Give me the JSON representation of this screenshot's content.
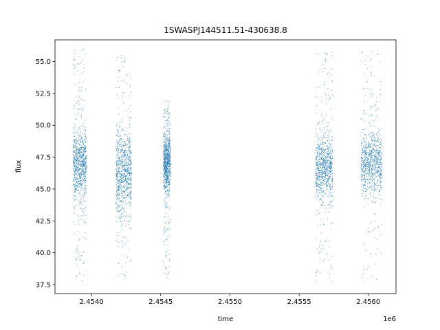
{
  "chart_data": {
    "type": "scatter",
    "title": "1SWASPJ144511.51-430638.8",
    "xlabel": "time",
    "ylabel": "flux",
    "x_offset_label": "1e6",
    "xlim": [
      2453736,
      2456200
    ],
    "ylim": [
      36.8,
      56.7
    ],
    "x_ticks": [
      2454000,
      2454500,
      2455000,
      2455500,
      2456000
    ],
    "x_tick_labels": [
      "2.4540",
      "2.4545",
      "2.4550",
      "2.4555",
      "2.4560"
    ],
    "y_ticks": [
      37.5,
      40.0,
      42.5,
      45.0,
      47.5,
      50.0,
      52.5,
      55.0
    ],
    "y_tick_labels": [
      "37.5",
      "40.0",
      "42.5",
      "45.0",
      "47.5",
      "50.0",
      "52.5",
      "55.0"
    ],
    "grid": false,
    "marker_color": "#1f77b4",
    "clusters": [
      {
        "x_range": [
          2453865,
          2453960
        ],
        "center": 46.9,
        "spread_core": 1.3,
        "min": 37.8,
        "max": 56.1
      },
      {
        "x_range": [
          2454175,
          2454288
        ],
        "center": 46.3,
        "spread_core": 1.6,
        "min": 37.8,
        "max": 55.5
      },
      {
        "x_range": [
          2454518,
          2454568
        ],
        "center": 47.0,
        "spread_core": 1.1,
        "min": 38.0,
        "max": 52.0
      },
      {
        "x_range": [
          2455618,
          2455740
        ],
        "center": 46.6,
        "spread_core": 1.2,
        "min": 37.7,
        "max": 56.0
      },
      {
        "x_range": [
          2455945,
          2456095
        ],
        "center": 47.1,
        "spread_core": 1.2,
        "min": 37.8,
        "max": 56.1
      }
    ]
  }
}
